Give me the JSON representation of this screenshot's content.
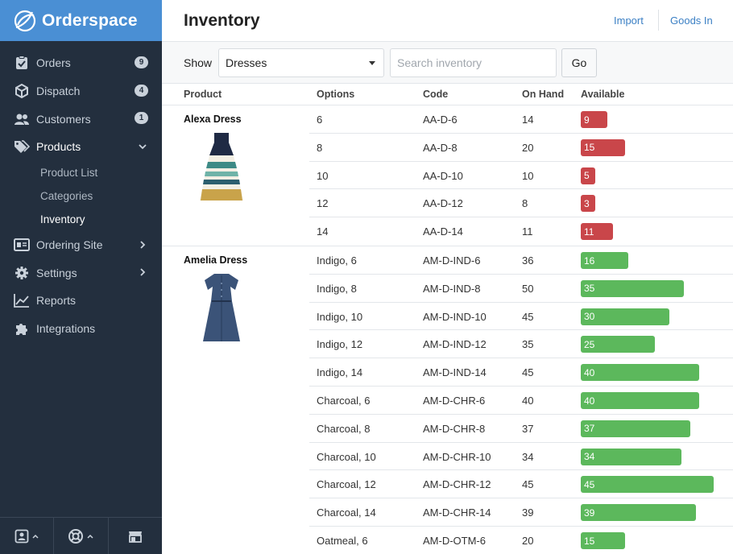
{
  "brand": {
    "name": "Orderspace",
    "icon": "orderspace-logo"
  },
  "colors": {
    "brand": "#4a8fd4",
    "sidebar": "#232f3e",
    "bar_low": "#c9464a",
    "bar_ok": "#5cb85c",
    "link": "#3a7fc4"
  },
  "sidebar": {
    "items": [
      {
        "label": "Orders",
        "icon": "clipboard-check-icon",
        "badge": "9"
      },
      {
        "label": "Dispatch",
        "icon": "box-icon",
        "badge": "4"
      },
      {
        "label": "Customers",
        "icon": "users-icon",
        "badge": "1"
      },
      {
        "label": "Products",
        "icon": "tags-icon",
        "expanded": true,
        "children": [
          {
            "label": "Product List"
          },
          {
            "label": "Categories"
          },
          {
            "label": "Inventory",
            "current": true
          }
        ]
      },
      {
        "label": "Ordering Site",
        "icon": "storefront-window-icon"
      },
      {
        "label": "Settings",
        "icon": "gear-icon"
      },
      {
        "label": "Reports",
        "icon": "line-chart-icon"
      },
      {
        "label": "Integrations",
        "icon": "puzzle-icon"
      }
    ],
    "footer": [
      "account-icon",
      "help-lifebuoy-icon",
      "store-icon"
    ]
  },
  "header": {
    "title": "Inventory",
    "import_label": "Import",
    "goods_in_label": "Goods In"
  },
  "filter": {
    "show_label": "Show",
    "selected": "Dresses",
    "search_placeholder": "Search inventory",
    "go_label": "Go"
  },
  "table": {
    "columns": [
      "Product",
      "Options",
      "Code",
      "On Hand",
      "Available"
    ],
    "products": [
      {
        "name": "Alexa Dress",
        "image": "striped-dress-image",
        "rows": [
          {
            "option": "6",
            "code": "AA-D-6",
            "on_hand": 14,
            "available": 9,
            "status": "low"
          },
          {
            "option": "8",
            "code": "AA-D-8",
            "on_hand": 20,
            "available": 15,
            "status": "low"
          },
          {
            "option": "10",
            "code": "AA-D-10",
            "on_hand": 10,
            "available": 5,
            "status": "low"
          },
          {
            "option": "12",
            "code": "AA-D-12",
            "on_hand": 8,
            "available": 3,
            "status": "low"
          },
          {
            "option": "14",
            "code": "AA-D-14",
            "on_hand": 11,
            "available": 11,
            "status": "low"
          }
        ]
      },
      {
        "name": "Amelia Dress",
        "image": "denim-dress-image",
        "rows": [
          {
            "option": "Indigo, 6",
            "code": "AM-D-IND-6",
            "on_hand": 36,
            "available": 16,
            "status": "ok"
          },
          {
            "option": "Indigo, 8",
            "code": "AM-D-IND-8",
            "on_hand": 50,
            "available": 35,
            "status": "ok"
          },
          {
            "option": "Indigo, 10",
            "code": "AM-D-IND-10",
            "on_hand": 45,
            "available": 30,
            "status": "ok"
          },
          {
            "option": "Indigo, 12",
            "code": "AM-D-IND-12",
            "on_hand": 35,
            "available": 25,
            "status": "ok"
          },
          {
            "option": "Indigo, 14",
            "code": "AM-D-IND-14",
            "on_hand": 45,
            "available": 40,
            "status": "ok"
          },
          {
            "option": "Charcoal, 6",
            "code": "AM-D-CHR-6",
            "on_hand": 40,
            "available": 40,
            "status": "ok"
          },
          {
            "option": "Charcoal, 8",
            "code": "AM-D-CHR-8",
            "on_hand": 37,
            "available": 37,
            "status": "ok"
          },
          {
            "option": "Charcoal, 10",
            "code": "AM-D-CHR-10",
            "on_hand": 34,
            "available": 34,
            "status": "ok"
          },
          {
            "option": "Charcoal, 12",
            "code": "AM-D-CHR-12",
            "on_hand": 45,
            "available": 45,
            "status": "ok"
          },
          {
            "option": "Charcoal, 14",
            "code": "AM-D-CHR-14",
            "on_hand": 39,
            "available": 39,
            "status": "ok"
          },
          {
            "option": "Oatmeal, 6",
            "code": "AM-D-OTM-6",
            "on_hand": 20,
            "available": 15,
            "status": "ok"
          }
        ]
      }
    ]
  }
}
